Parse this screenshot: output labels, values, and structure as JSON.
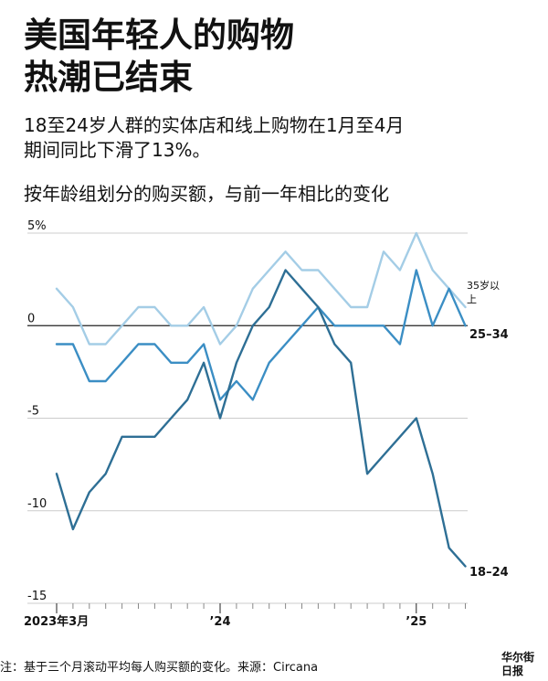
{
  "title_lines": [
    "美国年轻人的购物",
    "热潮已结束"
  ],
  "subtitle_lines": [
    "18至24岁人群的实体店和线上购物在1月至4月",
    "期间同比下滑了13%。"
  ],
  "chart_heading": "按年龄组划分的购买额，与前一年相比的变化",
  "note": "注：基于三个月滚动平均每人购买额的变化。来源：Circana",
  "logo_lines": [
    "华尔街",
    "日报"
  ],
  "colors": {
    "s18_24": "#2e6f95",
    "s25_34": "#3b8ec4",
    "s35plus": "#a4cde6",
    "axis": "#222222",
    "grid": "#cccccc",
    "tick": "#888888"
  },
  "chart_data": {
    "type": "line",
    "x": [
      "2023-03",
      "2023-04",
      "2023-05",
      "2023-06",
      "2023-07",
      "2023-08",
      "2023-09",
      "2023-10",
      "2023-11",
      "2023-12",
      "2024-01",
      "2024-02",
      "2024-03",
      "2024-04",
      "2024-05",
      "2024-06",
      "2024-07",
      "2024-08",
      "2024-09",
      "2024-10",
      "2024-11",
      "2024-12",
      "2025-01",
      "2025-02",
      "2025-03",
      "2025-04"
    ],
    "series": [
      {
        "name": "35岁以上",
        "color_key": "s35plus",
        "values": [
          2,
          1,
          -1,
          -1,
          0,
          1,
          1,
          0,
          0,
          1,
          -1,
          0,
          2,
          3,
          4,
          3,
          3,
          2,
          1,
          1,
          4,
          3,
          5,
          3,
          2,
          1
        ]
      },
      {
        "name": "25–34",
        "color_key": "s25_34",
        "values": [
          -1,
          -1,
          -3,
          -3,
          -2,
          -1,
          -1,
          -2,
          -2,
          -1,
          -4,
          -3,
          -4,
          -2,
          -1,
          0,
          1,
          0,
          0,
          0,
          0,
          -1,
          3,
          0,
          2,
          0
        ]
      },
      {
        "name": "18–24",
        "color_key": "s18_24",
        "values": [
          -8,
          -11,
          -9,
          -8,
          -6,
          -6,
          -6,
          -5,
          -4,
          -2,
          -5,
          -2,
          0,
          1,
          3,
          2,
          1,
          -1,
          -2,
          -8,
          -7,
          -6,
          -5,
          -8,
          -12,
          -13
        ]
      }
    ],
    "y_ticks": [
      {
        "value": 5,
        "label": "5%"
      },
      {
        "value": 0,
        "label": "0"
      },
      {
        "value": -5,
        "label": "-5"
      },
      {
        "value": -10,
        "label": "-10"
      },
      {
        "value": -15,
        "label": "-15"
      }
    ],
    "x_labels": [
      {
        "index": 0,
        "label": "2023年3月"
      },
      {
        "index": 10,
        "label": "’24"
      },
      {
        "index": 22,
        "label": "’25"
      }
    ],
    "ylim": [
      -15,
      5
    ],
    "grid": true,
    "legend": "direct-labels-right"
  }
}
